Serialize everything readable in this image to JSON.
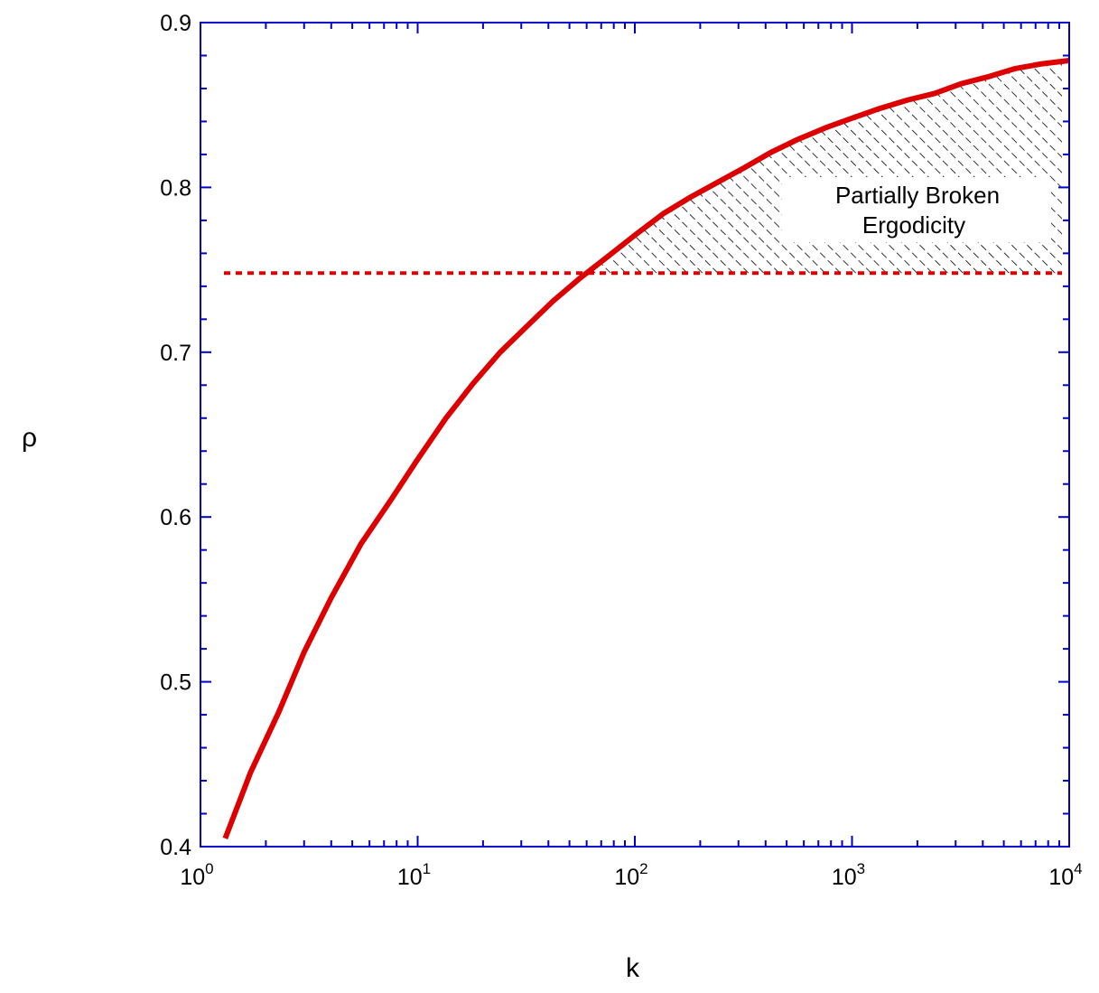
{
  "chart_data": {
    "type": "line",
    "title": "",
    "xlabel": "k",
    "ylabel": "ρ",
    "x_scale": "log",
    "xlim": [
      1,
      10000
    ],
    "ylim": [
      0.4,
      0.9
    ],
    "x_ticks": [
      {
        "value": 1,
        "base": "10",
        "exp": "0"
      },
      {
        "value": 10,
        "base": "10",
        "exp": "1"
      },
      {
        "value": 100,
        "base": "10",
        "exp": "2"
      },
      {
        "value": 1000,
        "base": "10",
        "exp": "3"
      },
      {
        "value": 10000,
        "base": "10",
        "exp": "4"
      }
    ],
    "y_ticks": [
      "0.4",
      "0.5",
      "0.6",
      "0.7",
      "0.8",
      "0.9"
    ],
    "grid": false,
    "legend": "none",
    "frame_color": "#0000cc",
    "series": [
      {
        "style": "solid",
        "color": "#dd0000",
        "x": [
          1.3,
          1.7,
          2.3,
          3.0,
          4.0,
          5.5,
          7.5,
          10,
          13.5,
          18,
          24,
          32,
          42,
          56,
          75,
          100,
          135,
          180,
          240,
          320,
          420,
          560,
          750,
          1000,
          1350,
          1800,
          2400,
          3200,
          4200,
          5600,
          7500,
          10000
        ],
        "y": [
          0.405,
          0.445,
          0.482,
          0.518,
          0.551,
          0.584,
          0.61,
          0.635,
          0.66,
          0.681,
          0.7,
          0.716,
          0.731,
          0.745,
          0.758,
          0.771,
          0.784,
          0.794,
          0.803,
          0.812,
          0.821,
          0.829,
          0.836,
          0.842,
          0.848,
          0.853,
          0.857,
          0.863,
          0.867,
          0.872,
          0.875,
          0.877
        ]
      },
      {
        "style": "dotted",
        "color": "#dd0000",
        "x": [
          1.0,
          10000
        ],
        "y": [
          0.748,
          0.748
        ]
      }
    ],
    "regions": [
      {
        "label_line1": "Partially Broken",
        "label_line2": "Ergodicity",
        "fill": "hatched",
        "bounds": "between curve and dotted line, k > 56"
      }
    ]
  }
}
